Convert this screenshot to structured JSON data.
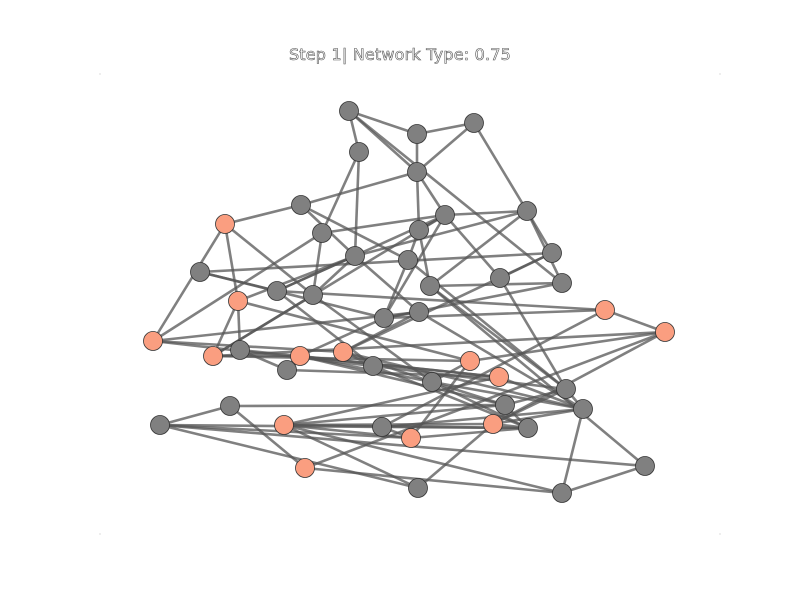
{
  "title": "Step 1| Network Type: 0.75",
  "colors": {
    "background": "#ffffff",
    "edge": "#555555",
    "node_default": "#808080",
    "node_highlight": "#fa9e80",
    "node_stroke": "#333333"
  },
  "graph": {
    "nodes": [
      {
        "id": "n1",
        "state": "default"
      },
      {
        "id": "n2",
        "state": "default"
      },
      {
        "id": "n3",
        "state": "default"
      },
      {
        "id": "n4",
        "state": "default"
      },
      {
        "id": "n5",
        "state": "default"
      },
      {
        "id": "n6",
        "state": "default"
      },
      {
        "id": "n7",
        "state": "highlight"
      },
      {
        "id": "n8",
        "state": "default"
      },
      {
        "id": "n9",
        "state": "default"
      },
      {
        "id": "n10",
        "state": "default"
      },
      {
        "id": "n11",
        "state": "default"
      },
      {
        "id": "n12",
        "state": "default"
      },
      {
        "id": "n13",
        "state": "default"
      },
      {
        "id": "n14",
        "state": "default"
      },
      {
        "id": "n15",
        "state": "default"
      },
      {
        "id": "n16",
        "state": "default"
      },
      {
        "id": "n17",
        "state": "default"
      },
      {
        "id": "n18",
        "state": "highlight"
      },
      {
        "id": "n19",
        "state": "default"
      },
      {
        "id": "n20",
        "state": "default"
      },
      {
        "id": "n21",
        "state": "default"
      },
      {
        "id": "n22",
        "state": "default"
      },
      {
        "id": "n23",
        "state": "highlight"
      },
      {
        "id": "n24",
        "state": "default"
      },
      {
        "id": "n25",
        "state": "highlight"
      },
      {
        "id": "n26",
        "state": "highlight"
      },
      {
        "id": "n27",
        "state": "default"
      },
      {
        "id": "n28",
        "state": "highlight"
      },
      {
        "id": "n29",
        "state": "highlight"
      },
      {
        "id": "n30",
        "state": "default"
      },
      {
        "id": "n31",
        "state": "default"
      },
      {
        "id": "n32",
        "state": "highlight"
      },
      {
        "id": "n33",
        "state": "highlight"
      },
      {
        "id": "n34",
        "state": "default"
      },
      {
        "id": "n35",
        "state": "highlight"
      },
      {
        "id": "n36",
        "state": "default"
      },
      {
        "id": "n37",
        "state": "default"
      },
      {
        "id": "n38",
        "state": "default"
      },
      {
        "id": "n39",
        "state": "highlight"
      },
      {
        "id": "n40",
        "state": "default"
      },
      {
        "id": "n41",
        "state": "default"
      },
      {
        "id": "n42",
        "state": "highlight"
      },
      {
        "id": "n43",
        "state": "highlight"
      },
      {
        "id": "n44",
        "state": "default"
      },
      {
        "id": "n45",
        "state": "default"
      },
      {
        "id": "n46",
        "state": "default"
      },
      {
        "id": "n47",
        "state": "default"
      },
      {
        "id": "n48",
        "state": "highlight"
      },
      {
        "id": "n49",
        "state": "default"
      }
    ],
    "edges": [
      [
        "n1",
        "n4"
      ],
      [
        "n1",
        "n3"
      ],
      [
        "n1",
        "n5"
      ],
      [
        "n1",
        "n20"
      ],
      [
        "n2",
        "n5"
      ],
      [
        "n2",
        "n8"
      ],
      [
        "n3",
        "n5"
      ],
      [
        "n4",
        "n12"
      ],
      [
        "n5",
        "n6"
      ],
      [
        "n5",
        "n10"
      ],
      [
        "n5",
        "n11"
      ],
      [
        "n4",
        "n9"
      ],
      [
        "n6",
        "n7"
      ],
      [
        "n6",
        "n12"
      ],
      [
        "n6",
        "n14"
      ],
      [
        "n7",
        "n18"
      ],
      [
        "n7",
        "n19"
      ],
      [
        "n8",
        "n13"
      ],
      [
        "n8",
        "n10"
      ],
      [
        "n8",
        "n12"
      ],
      [
        "n8",
        "n21"
      ],
      [
        "n8",
        "n20"
      ],
      [
        "n9",
        "n10"
      ],
      [
        "n9",
        "n26"
      ],
      [
        "n9",
        "n19"
      ],
      [
        "n10",
        "n11"
      ],
      [
        "n10",
        "n16"
      ],
      [
        "n10",
        "n22"
      ],
      [
        "n10",
        "n17"
      ],
      [
        "n10",
        "n25"
      ],
      [
        "n11",
        "n21"
      ],
      [
        "n11",
        "n14"
      ],
      [
        "n12",
        "n19"
      ],
      [
        "n12",
        "n18"
      ],
      [
        "n12",
        "n24"
      ],
      [
        "n12",
        "n16"
      ],
      [
        "n13",
        "n15"
      ],
      [
        "n13",
        "n17"
      ],
      [
        "n13",
        "n29"
      ],
      [
        "n15",
        "n16"
      ],
      [
        "n15",
        "n22"
      ],
      [
        "n16",
        "n23"
      ],
      [
        "n16",
        "n31"
      ],
      [
        "n17",
        "n36"
      ],
      [
        "n14",
        "n22"
      ],
      [
        "n14",
        "n36"
      ],
      [
        "n18",
        "n27"
      ],
      [
        "n18",
        "n25"
      ],
      [
        "n18",
        "n32"
      ],
      [
        "n19",
        "n25"
      ],
      [
        "n19",
        "n34"
      ],
      [
        "n20",
        "n22"
      ],
      [
        "n20",
        "n21"
      ],
      [
        "n21",
        "n36"
      ],
      [
        "n21",
        "n46"
      ],
      [
        "n22",
        "n24"
      ],
      [
        "n22",
        "n23"
      ],
      [
        "n22",
        "n28"
      ],
      [
        "n23",
        "n41"
      ],
      [
        "n23",
        "n35"
      ],
      [
        "n24",
        "n26"
      ],
      [
        "n24",
        "n29"
      ],
      [
        "n24",
        "n38"
      ],
      [
        "n25",
        "n28"
      ],
      [
        "n25",
        "n32"
      ],
      [
        "n25",
        "n35"
      ],
      [
        "n26",
        "n29"
      ],
      [
        "n26",
        "n31"
      ],
      [
        "n27",
        "n30"
      ],
      [
        "n27",
        "n33"
      ],
      [
        "n28",
        "n30"
      ],
      [
        "n28",
        "n34"
      ],
      [
        "n28",
        "n37"
      ],
      [
        "n29",
        "n31"
      ],
      [
        "n29",
        "n34"
      ],
      [
        "n29",
        "n38"
      ],
      [
        "n30",
        "n33"
      ],
      [
        "n31",
        "n36"
      ],
      [
        "n31",
        "n40"
      ],
      [
        "n32",
        "n34"
      ],
      [
        "n32",
        "n35"
      ],
      [
        "n32",
        "n42"
      ],
      [
        "n33",
        "n38"
      ],
      [
        "n33",
        "n43"
      ],
      [
        "n34",
        "n37"
      ],
      [
        "n34",
        "n38"
      ],
      [
        "n34",
        "n40"
      ],
      [
        "n35",
        "n39"
      ],
      [
        "n35",
        "n48"
      ],
      [
        "n36",
        "n37"
      ],
      [
        "n36",
        "n38"
      ],
      [
        "n36",
        "n39"
      ],
      [
        "n37",
        "n40"
      ],
      [
        "n37",
        "n43"
      ],
      [
        "n37",
        "n44"
      ],
      [
        "n38",
        "n39"
      ],
      [
        "n38",
        "n41"
      ],
      [
        "n38",
        "n47"
      ],
      [
        "n39",
        "n40"
      ],
      [
        "n39",
        "n43"
      ],
      [
        "n40",
        "n41"
      ],
      [
        "n40",
        "n42"
      ],
      [
        "n40",
        "n43"
      ],
      [
        "n41",
        "n42"
      ],
      [
        "n41",
        "n45"
      ],
      [
        "n42",
        "n43"
      ],
      [
        "n42",
        "n45"
      ],
      [
        "n43",
        "n47"
      ],
      [
        "n43",
        "n49"
      ],
      [
        "n44",
        "n48"
      ],
      [
        "n44",
        "n45"
      ],
      [
        "n45",
        "n46"
      ],
      [
        "n45",
        "n49"
      ],
      [
        "n46",
        "n47"
      ],
      [
        "n47",
        "n48"
      ],
      [
        "n49",
        "n39"
      ],
      [
        "n7",
        "n26"
      ],
      [
        "n33",
        "n28"
      ],
      [
        "n3",
        "n2"
      ]
    ]
  }
}
